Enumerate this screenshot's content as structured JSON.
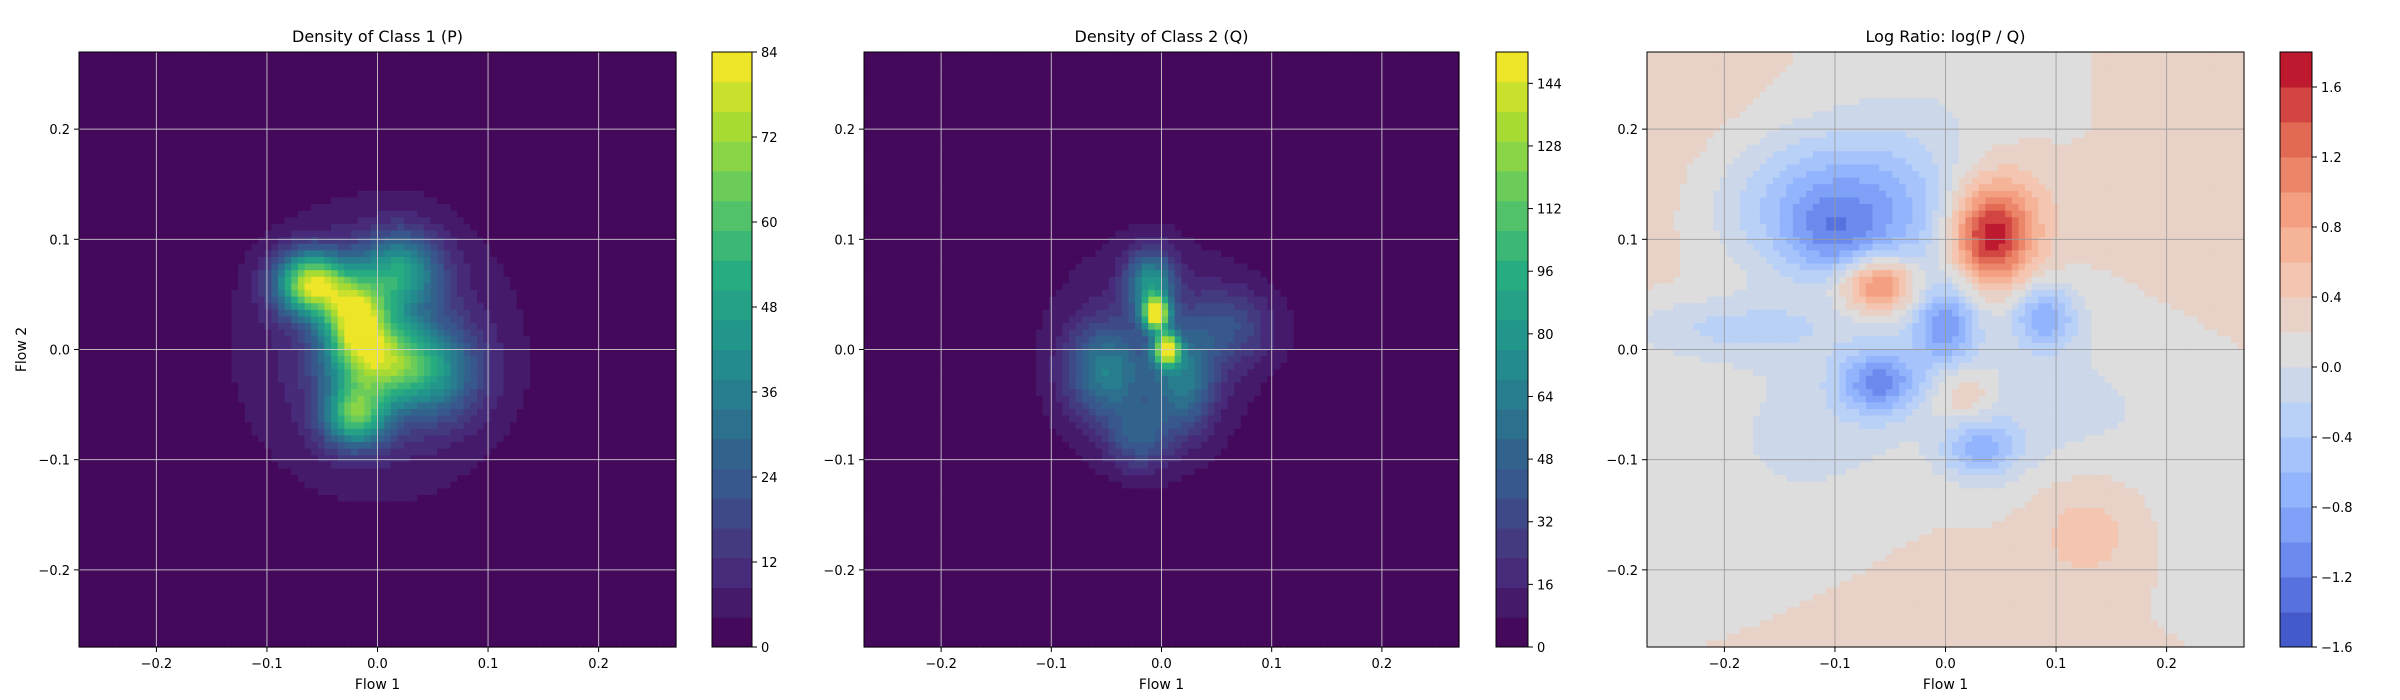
{
  "chart_data": [
    {
      "type": "heatmap",
      "title": "Density of Class 1 (P)",
      "xlabel": "Flow 1",
      "ylabel": "Flow 2",
      "xlim": [
        -0.27,
        0.27
      ],
      "ylim": [
        -0.27,
        0.27
      ],
      "xticks": [
        -0.2,
        -0.1,
        0.0,
        0.1,
        0.2
      ],
      "yticks": [
        -0.2,
        -0.1,
        0.0,
        0.1,
        0.2
      ],
      "grid": true,
      "colormap": "viridis",
      "colorbar": {
        "min": 0,
        "max": 84,
        "ticks": [
          0,
          12,
          24,
          36,
          48,
          60,
          72,
          84
        ]
      },
      "blobs": [
        {
          "x": -0.06,
          "y": 0.06,
          "sx": 0.022,
          "sy": 0.02,
          "value": 70
        },
        {
          "x": -0.02,
          "y": 0.03,
          "sx": 0.02,
          "sy": 0.025,
          "value": 60
        },
        {
          "x": 0.0,
          "y": -0.01,
          "sx": 0.03,
          "sy": 0.025,
          "value": 50
        },
        {
          "x": 0.02,
          "y": 0.07,
          "sx": 0.025,
          "sy": 0.025,
          "value": 40
        },
        {
          "x": -0.02,
          "y": -0.06,
          "sx": 0.02,
          "sy": 0.02,
          "value": 50
        },
        {
          "x": 0.05,
          "y": -0.02,
          "sx": 0.03,
          "sy": 0.03,
          "value": 30
        },
        {
          "x": 0.0,
          "y": 0.0,
          "sx": 0.085,
          "sy": 0.09,
          "value": 14
        }
      ]
    },
    {
      "type": "heatmap",
      "title": "Density of Class 2 (Q)",
      "xlabel": "Flow 1",
      "ylabel": "",
      "xlim": [
        -0.27,
        0.27
      ],
      "ylim": [
        -0.27,
        0.27
      ],
      "xticks": [
        -0.2,
        -0.1,
        0.0,
        0.1,
        0.2
      ],
      "yticks": [
        -0.2,
        -0.1,
        0.0,
        0.1,
        0.2
      ],
      "grid": true,
      "colormap": "viridis",
      "colorbar": {
        "min": 0,
        "max": 152,
        "ticks": [
          0,
          16,
          32,
          48,
          64,
          80,
          96,
          112,
          128,
          144
        ]
      },
      "blobs": [
        {
          "x": -0.005,
          "y": 0.032,
          "sx": 0.008,
          "sy": 0.01,
          "value": 140
        },
        {
          "x": 0.005,
          "y": 0.0,
          "sx": 0.008,
          "sy": 0.01,
          "value": 130
        },
        {
          "x": -0.01,
          "y": 0.06,
          "sx": 0.015,
          "sy": 0.02,
          "value": 70
        },
        {
          "x": -0.05,
          "y": -0.02,
          "sx": 0.025,
          "sy": 0.03,
          "value": 55
        },
        {
          "x": 0.02,
          "y": -0.03,
          "sx": 0.02,
          "sy": 0.03,
          "value": 50
        },
        {
          "x": -0.02,
          "y": -0.08,
          "sx": 0.02,
          "sy": 0.02,
          "value": 35
        },
        {
          "x": 0.06,
          "y": 0.02,
          "sx": 0.03,
          "sy": 0.025,
          "value": 30
        },
        {
          "x": -0.01,
          "y": 0.0,
          "sx": 0.075,
          "sy": 0.085,
          "value": 16
        }
      ]
    },
    {
      "type": "heatmap",
      "title": "Log Ratio: log(P / Q)",
      "xlabel": "Flow 1",
      "ylabel": "",
      "xlim": [
        -0.27,
        0.27
      ],
      "ylim": [
        -0.27,
        0.27
      ],
      "xticks": [
        -0.2,
        -0.1,
        0.0,
        0.1,
        0.2
      ],
      "yticks": [
        -0.2,
        -0.1,
        0.0,
        0.1,
        0.2
      ],
      "grid": true,
      "colormap": "coolwarm",
      "colorbar": {
        "min": -1.6,
        "max": 1.8,
        "ticks": [
          -1.6,
          -1.2,
          -0.8,
          -0.4,
          0.0,
          0.4,
          0.8,
          1.2,
          1.6
        ]
      },
      "base_value": 0.3,
      "blobs": [
        {
          "x": 0.04,
          "y": 0.1,
          "sx": 0.025,
          "sy": 0.03,
          "value": 1.5
        },
        {
          "x": -0.06,
          "y": 0.06,
          "sx": 0.025,
          "sy": 0.018,
          "value": 1.2
        },
        {
          "x": 0.05,
          "y": 0.13,
          "sx": 0.04,
          "sy": 0.04,
          "value": 0.5
        },
        {
          "x": 0.13,
          "y": -0.16,
          "sx": 0.04,
          "sy": 0.04,
          "value": 0.4
        },
        {
          "x": 0.02,
          "y": -0.04,
          "sx": 0.02,
          "sy": 0.02,
          "value": 0.4
        },
        {
          "x": -0.1,
          "y": 0.13,
          "sx": 0.07,
          "sy": 0.045,
          "value": -1.0
        },
        {
          "x": -0.1,
          "y": 0.1,
          "sx": 0.03,
          "sy": 0.025,
          "value": -0.5
        },
        {
          "x": 0.0,
          "y": 0.02,
          "sx": 0.02,
          "sy": 0.025,
          "value": -0.9
        },
        {
          "x": 0.09,
          "y": 0.03,
          "sx": 0.02,
          "sy": 0.02,
          "value": -0.9
        },
        {
          "x": -0.06,
          "y": -0.03,
          "sx": 0.025,
          "sy": 0.02,
          "value": -1.0
        },
        {
          "x": 0.03,
          "y": -0.09,
          "sx": 0.025,
          "sy": 0.02,
          "value": -0.8
        },
        {
          "x": -0.2,
          "y": 0.02,
          "sx": 0.08,
          "sy": 0.02,
          "value": -0.4
        },
        {
          "x": 0.0,
          "y": 0.0,
          "sx": 0.17,
          "sy": 0.17,
          "value": -0.35
        }
      ]
    }
  ]
}
